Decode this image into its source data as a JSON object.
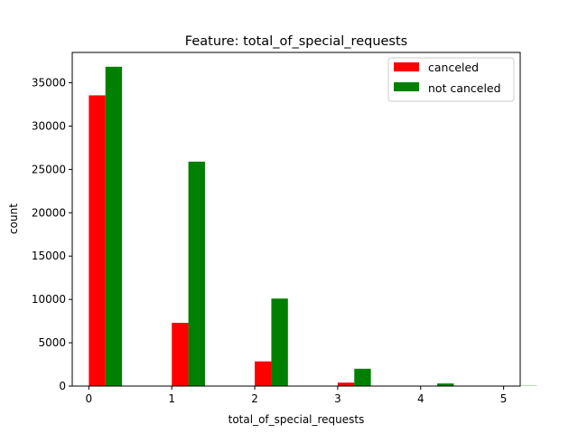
{
  "colors": {
    "canceled": "#ff0000",
    "not_canceled": "#008000"
  },
  "chart_data": {
    "type": "bar",
    "title": "Feature: total_of_special_requests",
    "xlabel": "total_of_special_requests",
    "ylabel": "count",
    "x_ticks": [
      "0",
      "1",
      "2",
      "3",
      "4",
      "5"
    ],
    "y_ticks": [
      "0",
      "5000",
      "10000",
      "15000",
      "20000",
      "25000",
      "30000",
      "35000"
    ],
    "xlim": [
      -0.2,
      5.2
    ],
    "ylim": [
      0,
      38500
    ],
    "grid": false,
    "legend_position": "top-right",
    "series": [
      {
        "name": "canceled",
        "color": "#ff0000",
        "x": [
          0,
          1,
          2,
          3,
          4,
          5
        ],
        "values": [
          33550,
          7300,
          2850,
          400,
          25,
          5
        ]
      },
      {
        "name": "not canceled",
        "color": "#008000",
        "x": [
          0,
          1,
          2,
          3,
          4,
          5
        ],
        "values": [
          36850,
          25900,
          10100,
          2000,
          300,
          30
        ]
      }
    ]
  }
}
